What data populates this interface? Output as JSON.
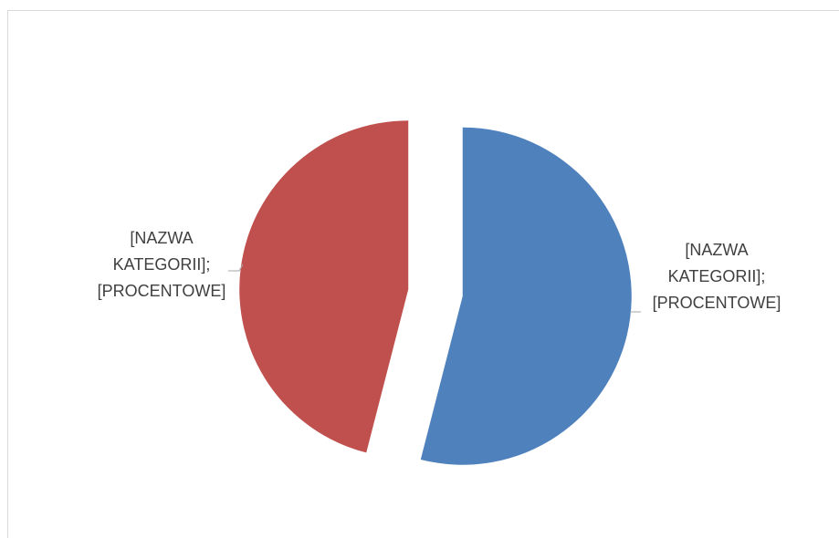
{
  "chart_data": {
    "type": "pie",
    "title": "",
    "exploded": true,
    "slices": [
      {
        "value": 54,
        "color": "#4f81bd",
        "label_lines": [
          "[NAZWA",
          "KATEGORII];",
          "[PROCENTOWE]"
        ]
      },
      {
        "value": 46,
        "color": "#c0504d",
        "label_lines": [
          "[NAZWA",
          "KATEGORII];",
          "[PROCENTOWE]"
        ]
      }
    ],
    "leader_line_color": "#a6a6a6",
    "legend": "none"
  }
}
